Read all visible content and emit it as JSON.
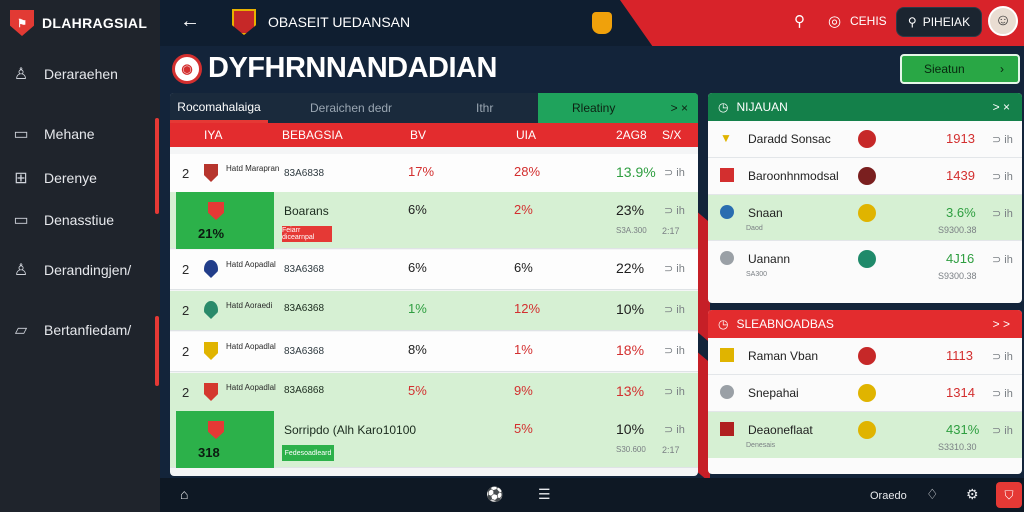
{
  "app": {
    "brand": "DLAHRAGSIAL"
  },
  "sidebar": {
    "items": [
      {
        "label": "Deraraehen",
        "icon": "user-icon"
      },
      {
        "label": "Mehane",
        "icon": "square-icon"
      },
      {
        "label": "Derenye",
        "icon": "grid-icon"
      },
      {
        "label": "Denasstiue",
        "icon": "square-icon"
      },
      {
        "label": "Derandingjen/",
        "icon": "user-icon"
      },
      {
        "label": "Bertanfiedam/",
        "icon": "folder-icon"
      }
    ]
  },
  "header": {
    "title": "OBASEIT UEDANSAN",
    "badge_text": "CEHIS",
    "account_button": "PIHEIAK"
  },
  "main": {
    "title": "DYFHRNNANDADIAN",
    "filter_button": "Sieatun",
    "tabs": [
      {
        "label": "Rocomahalaiga"
      },
      {
        "label": "Deraichen dedr"
      },
      {
        "label": "Ithr"
      },
      {
        "label": "Rleatiny"
      }
    ],
    "tab_arrows": "> ×",
    "columns": [
      "IYA",
      "BEBAGSIA",
      "BV",
      "UIA",
      "2AG8",
      "S/X"
    ],
    "rows": [
      {
        "rank": "2",
        "team": "Hatd Marapran",
        "sub": "83A6838",
        "c1": "17%",
        "c2": "28%",
        "c3": "13.9%",
        "c4": "⊃ ih"
      },
      {
        "rank": "21%",
        "team": "",
        "sub": "Boarans",
        "c1": "6%",
        "c2": "2%",
        "c3": "23%",
        "c4": "⊃ ih",
        "chip": "Feiarr dicearnpal",
        "small": "S3A.300",
        "small2": "2:17"
      },
      {
        "rank": "2",
        "team": "Hatd Aopadlal",
        "sub": "83A6368",
        "c1": "6%",
        "c2": "6%",
        "c3": "22%",
        "c4": "⊃ ih"
      },
      {
        "rank": "2",
        "team": "Hatd Aoraedi",
        "sub": "83A6368",
        "c1": "1%",
        "c2": "12%",
        "c3": "10%",
        "c4": "⊃ ih"
      },
      {
        "rank": "2",
        "team": "Hatd Aopadlal",
        "sub": "83A6368",
        "c1": "8%",
        "c2": "1%",
        "c3": "18%",
        "c4": "⊃ ih"
      },
      {
        "rank": "2",
        "team": "Hatd Aopadlal",
        "sub": "83A6868",
        "c1": "5%",
        "c2": "9%",
        "c3": "13%",
        "c4": "⊃ ih"
      },
      {
        "rank": "318",
        "team": "",
        "sub": "Sorripdo (Alh Karo10100",
        "c1": "",
        "c2": "5%",
        "c3": "10%",
        "c4": "⊃ ih",
        "chip": "Fedesoadleard",
        "small": "S30.600",
        "small2": "2:17"
      }
    ]
  },
  "right_top": {
    "title": "NIJAUAN",
    "arrows": "> ×",
    "rows": [
      {
        "name": "Daradd Sonsac",
        "value": "1913",
        "arrow": "⊃ ih"
      },
      {
        "name": "Baroonhnmodsal",
        "value": "1439",
        "arrow": "⊃ ih"
      },
      {
        "name": "Snaan",
        "value": "3.6%",
        "arrow": "⊃ ih",
        "small": "Daod",
        "small2": "S9300.38"
      },
      {
        "name": "Uanann",
        "value": "4J16",
        "arrow": "⊃ ih",
        "small": "SA300",
        "small2": "S9300.38"
      }
    ]
  },
  "right_bottom": {
    "title": "SLEABNOADBAS",
    "arrows": "> >",
    "rows": [
      {
        "name": "Raman Vban",
        "value": "1113",
        "arrow": "⊃ ih"
      },
      {
        "name": "Snepahai",
        "value": "1314",
        "arrow": "⊃ ih"
      },
      {
        "name": "Deaoneflaat",
        "value": "431%",
        "arrow": "⊃ ih",
        "small": "Denesais",
        "small2": "S3310.30"
      }
    ]
  },
  "bottombar": {
    "label": "Oraedo"
  },
  "colors": {
    "accent_red": "#e32c2e",
    "accent_green": "#2cb14a",
    "bg": "#13243a"
  }
}
